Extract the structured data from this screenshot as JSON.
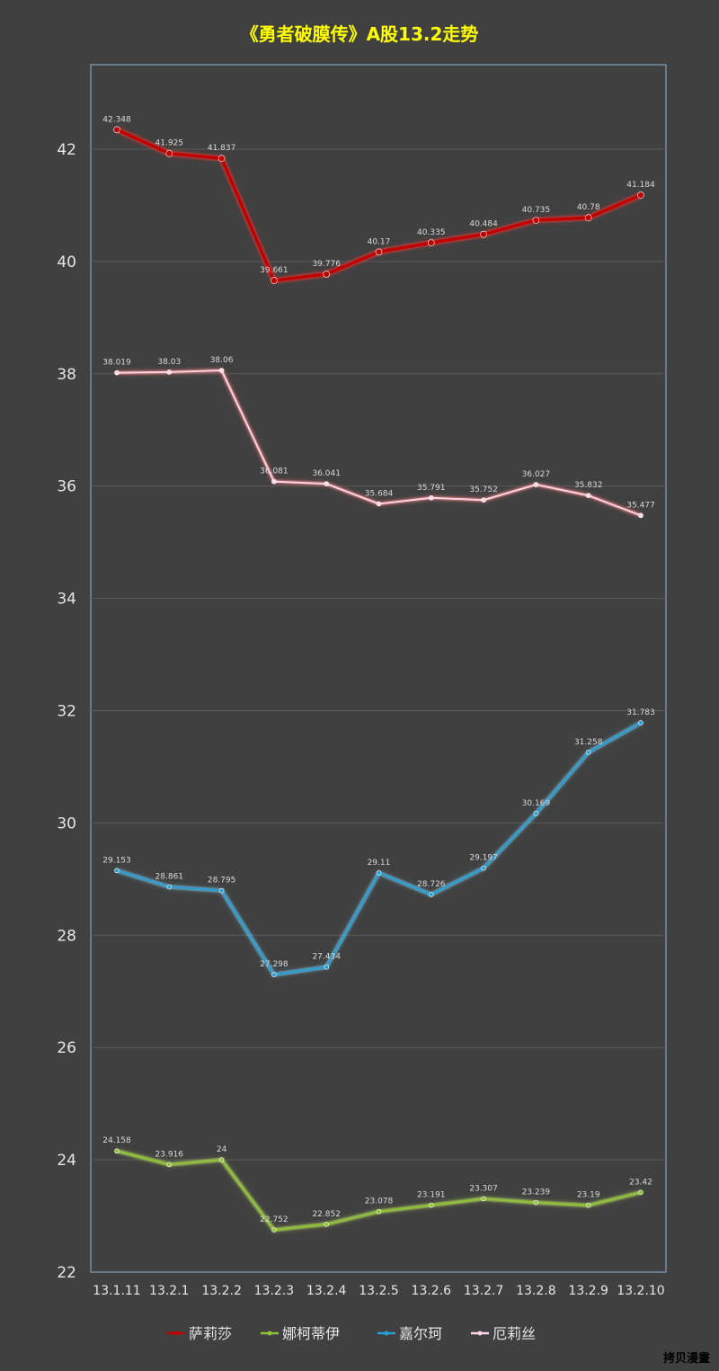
{
  "chart_data": {
    "type": "line",
    "title": "《勇者破膜传》A股13.2走势",
    "title_color": "#ffff00",
    "background": "#404040",
    "grid": true,
    "legend_placement": "bottom",
    "ylim": [
      22,
      43
    ],
    "yticks": [
      22,
      24,
      26,
      28,
      30,
      32,
      34,
      36,
      38,
      40,
      42
    ],
    "categories": [
      "13.1.11",
      "13.2.1",
      "13.2.2",
      "13.2.3",
      "13.2.4",
      "13.2.5",
      "13.2.6",
      "13.2.7",
      "13.2.8",
      "13.2.9",
      "13.2.10"
    ],
    "series": [
      {
        "name": "萨莉莎",
        "color": "#c00000",
        "glow": "#ff3a3a",
        "labels": [
          "42.348",
          "41.925",
          "41.837",
          "39.661",
          "39.776",
          "40.17",
          "40.335",
          "40.484",
          "40.735",
          "40.78",
          "41.184"
        ],
        "values": [
          42.348,
          41.925,
          41.837,
          39.661,
          39.776,
          40.17,
          40.335,
          40.484,
          40.735,
          40.78,
          41.184
        ]
      },
      {
        "name": "娜柯蒂伊",
        "color": "#8fc43a",
        "glow": "#c8f060",
        "labels": [
          "24.158",
          "23.916",
          "24",
          "22.752",
          "22.852",
          "23.078",
          "23.191",
          "23.307",
          "23.239",
          "23.19",
          "23.42"
        ],
        "values": [
          24.158,
          23.916,
          24,
          22.752,
          22.852,
          23.078,
          23.191,
          23.307,
          23.239,
          23.19,
          23.42
        ]
      },
      {
        "name": "嘉尔珂",
        "color": "#27a0d6",
        "glow": "#7fd6ff",
        "labels": [
          "29.153",
          "28.861",
          "28.795",
          "27.298",
          "27.434",
          "29.11",
          "28.726",
          "29.197",
          "30.169",
          "31.258",
          "31.783"
        ],
        "values": [
          29.153,
          28.861,
          28.795,
          27.298,
          27.434,
          29.11,
          28.726,
          29.197,
          30.169,
          31.258,
          31.783
        ]
      },
      {
        "name": "厄莉丝",
        "color": "#ffd6e6",
        "glow": "#ff8080",
        "labels": [
          "38.019",
          "38.03",
          "38.06",
          "36.081",
          "36.041",
          "35.684",
          "35.791",
          "35.752",
          "36.027",
          "35.832",
          "35.477"
        ],
        "values": [
          38.019,
          38.03,
          38.06,
          36.081,
          36.041,
          35.684,
          35.791,
          35.752,
          36.027,
          35.832,
          35.477
        ]
      }
    ]
  },
  "watermark": "拷贝漫畫"
}
